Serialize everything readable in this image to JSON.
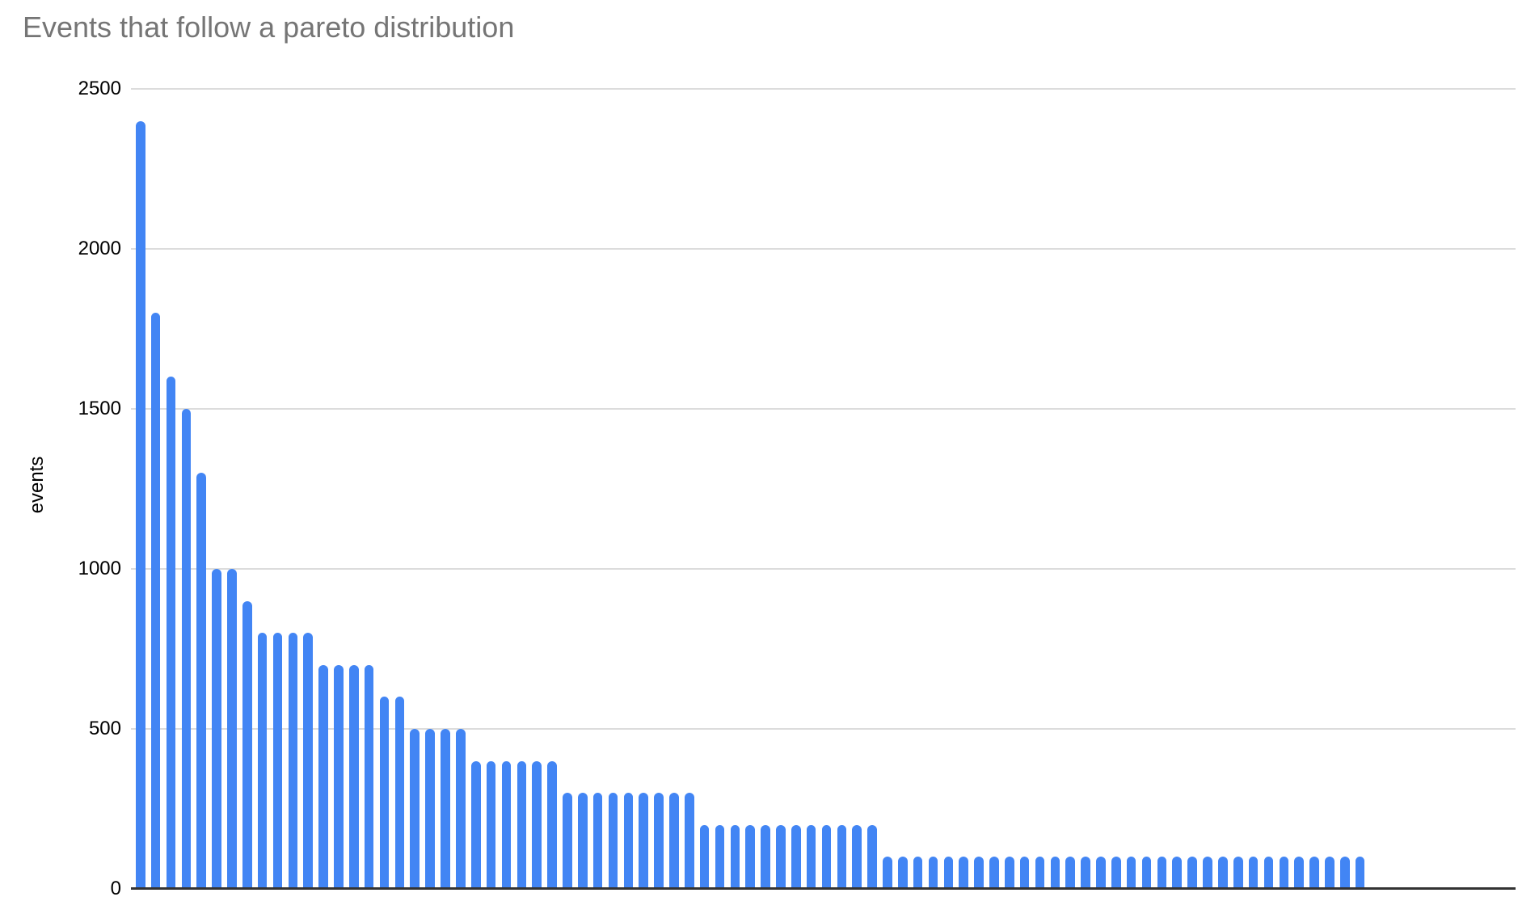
{
  "chart_data": {
    "type": "bar",
    "title": "Events that follow a pareto distribution",
    "xlabel": "",
    "ylabel": "events",
    "ylim": [
      0,
      2500
    ],
    "yticks": [
      2500,
      2000,
      1500,
      1000,
      500,
      0
    ],
    "grid": "horizontal",
    "legend": "none",
    "x_tick_labels": [],
    "bar_color": "#4285f4",
    "title_color": "#757575",
    "gridline_color": "#dcdcdc",
    "axis_line_color": "#333333",
    "values": [
      2400,
      1800,
      1600,
      1500,
      1300,
      1000,
      1000,
      900,
      800,
      800,
      800,
      800,
      700,
      700,
      700,
      700,
      600,
      600,
      500,
      500,
      500,
      500,
      400,
      400,
      400,
      400,
      400,
      400,
      300,
      300,
      300,
      300,
      300,
      300,
      300,
      300,
      300,
      200,
      200,
      200,
      200,
      200,
      200,
      200,
      200,
      200,
      200,
      200,
      200,
      100,
      100,
      100,
      100,
      100,
      100,
      100,
      100,
      100,
      100,
      100,
      100,
      100,
      100,
      100,
      100,
      100,
      100,
      100,
      100,
      100,
      100,
      100,
      100,
      100,
      100,
      100,
      100,
      100,
      100,
      100,
      100
    ]
  }
}
